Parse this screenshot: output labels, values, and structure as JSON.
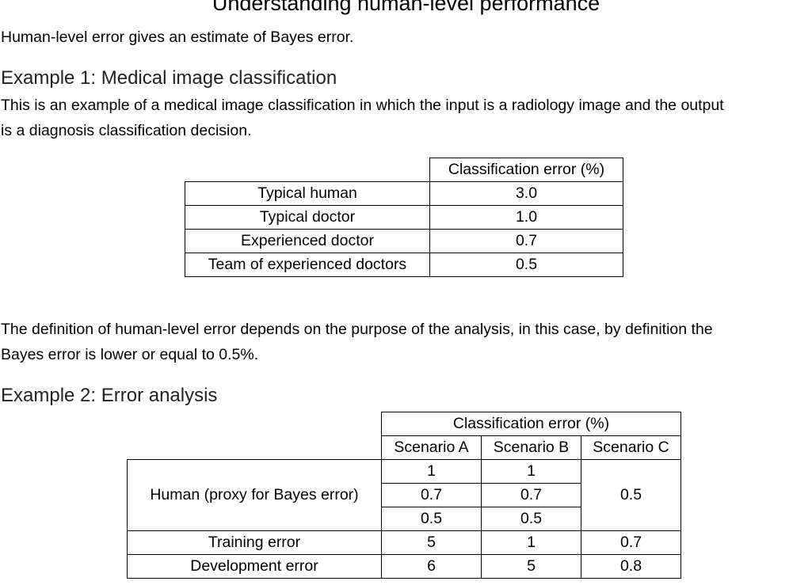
{
  "title": "Understanding human-level performance",
  "intro": "Human-level error gives an estimate of Bayes error.",
  "example1": {
    "heading": "Example 1: Medical image classification",
    "line1": "This is an example of a medical image classification in which the input is a radiology image and the output",
    "line2": "is a diagnosis classification decision.",
    "table": {
      "column_header": "Classification error (%)",
      "rows": [
        {
          "label": "Typical human",
          "value": "3.0"
        },
        {
          "label": "Typical doctor",
          "value": "1.0"
        },
        {
          "label": "Experienced doctor",
          "value": "0.7"
        },
        {
          "label": "Team of experienced doctors",
          "value": "0.5"
        }
      ]
    }
  },
  "definition": {
    "line1": "The definition of human-level error depends on the purpose of the analysis, in this case, by definition the",
    "line2": "Bayes error is lower or equal to 0.5%."
  },
  "example2": {
    "heading": "Example 2: Error analysis",
    "table": {
      "group_header": "Classification error (%)",
      "scenarios": [
        "Scenario A",
        "Scenario B",
        "Scenario C"
      ],
      "human_label": "Human (proxy for Bayes error)",
      "human_a": [
        "1",
        "0.7",
        "0.5"
      ],
      "human_b": [
        "1",
        "0.7",
        "0.5"
      ],
      "human_c": "0.5",
      "training": {
        "label": "Training error",
        "a": "5",
        "b": "1",
        "c": "0.7"
      },
      "dev": {
        "label": "Development error",
        "a": "6",
        "b": "5",
        "c": "0.8"
      }
    }
  }
}
